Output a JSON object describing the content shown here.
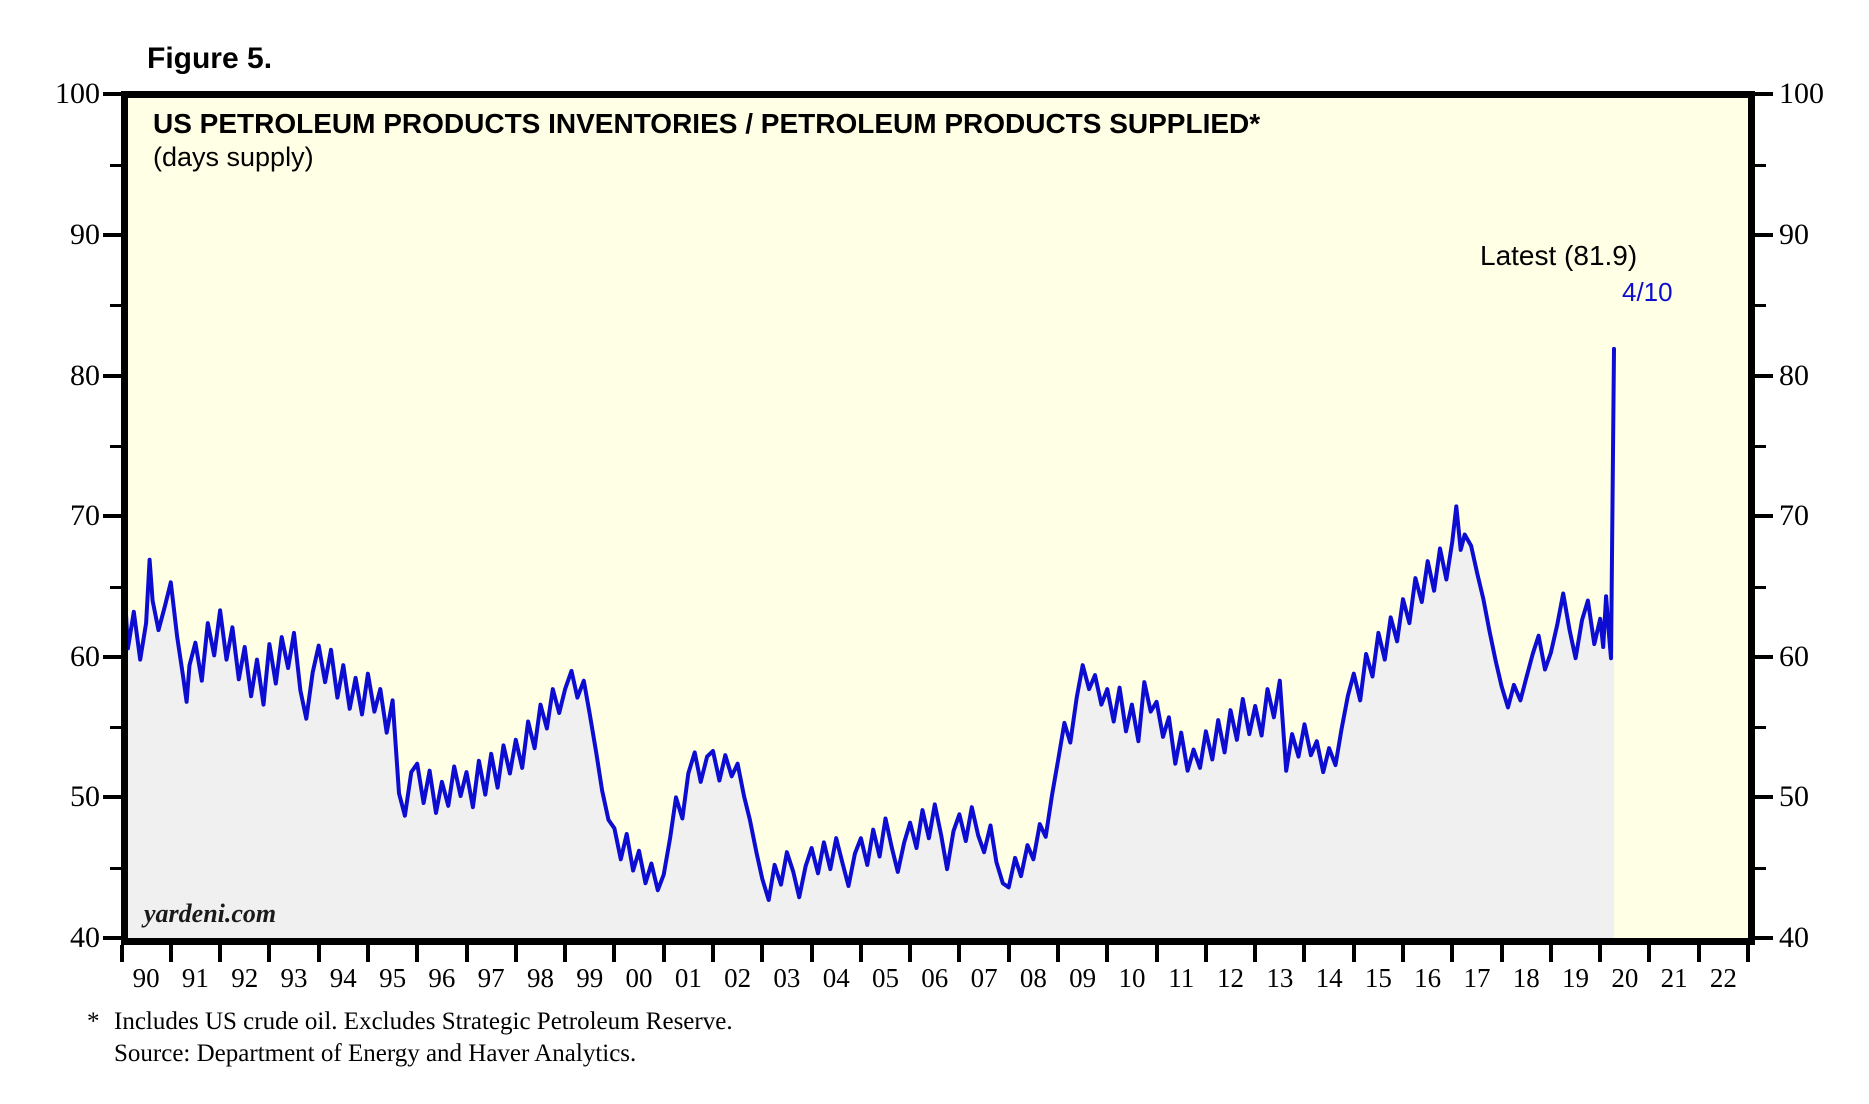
{
  "figure_label": "Figure 5.",
  "chart": {
    "title": "US PETROLEUM PRODUCTS INVENTORIES / PETROLEUM PRODUCTS SUPPLIED*",
    "subtitle": "(days supply)",
    "watermark": "yardeni.com",
    "latest_label": "Latest (81.9)",
    "spike_label": "4/10",
    "colors": {
      "plot_background": "#FFFFE6",
      "area_fill": "#F0F0F0",
      "line": "#0D0DD2",
      "frame": "#000000",
      "text": "#000000"
    }
  },
  "footnote": {
    "marker": "*",
    "line1": "Includes US crude oil. Excludes Strategic Petroleum Reserve.",
    "line2": "Source: Department of Energy and Haver Analytics."
  },
  "chart_data": {
    "type": "line",
    "title": "US PETROLEUM PRODUCTS INVENTORIES / PETROLEUM PRODUCTS SUPPLIED*",
    "subtitle": "(days supply)",
    "ylabel": "days supply",
    "ylim": [
      40,
      100
    ],
    "y_major_ticks": [
      40,
      50,
      60,
      70,
      80,
      90,
      100
    ],
    "y_minor_ticks": [
      45,
      55,
      65,
      75,
      85,
      95
    ],
    "y_labels_both_sides": true,
    "x_start_year": 1990,
    "x_end_year": 2023,
    "x_tick_labels": [
      "90",
      "91",
      "92",
      "93",
      "94",
      "95",
      "96",
      "97",
      "98",
      "99",
      "00",
      "01",
      "02",
      "03",
      "04",
      "05",
      "06",
      "07",
      "08",
      "09",
      "10",
      "11",
      "12",
      "13",
      "14",
      "15",
      "16",
      "17",
      "18",
      "19",
      "20",
      "21",
      "22"
    ],
    "latest_value": 81.9,
    "latest_date_label": "4/10",
    "grid": false,
    "legend": "none",
    "series": [
      {
        "name": "US petroleum products inventories / petroleum products supplied (days supply)",
        "points": [
          [
            1990.05,
            53.8
          ],
          [
            1990.07,
            64.3
          ],
          [
            1990.13,
            60.6
          ],
          [
            1990.25,
            63.2
          ],
          [
            1990.38,
            59.8
          ],
          [
            1990.5,
            62.4
          ],
          [
            1990.57,
            66.9
          ],
          [
            1990.63,
            64.0
          ],
          [
            1990.75,
            61.9
          ],
          [
            1990.88,
            63.6
          ],
          [
            1991.0,
            65.3
          ],
          [
            1991.13,
            61.4
          ],
          [
            1991.25,
            58.6
          ],
          [
            1991.32,
            56.8
          ],
          [
            1991.38,
            59.4
          ],
          [
            1991.5,
            61.0
          ],
          [
            1991.63,
            58.3
          ],
          [
            1991.75,
            62.4
          ],
          [
            1991.88,
            60.1
          ],
          [
            1992.0,
            63.3
          ],
          [
            1992.13,
            59.8
          ],
          [
            1992.25,
            62.1
          ],
          [
            1992.38,
            58.4
          ],
          [
            1992.5,
            60.7
          ],
          [
            1992.63,
            57.2
          ],
          [
            1992.75,
            59.8
          ],
          [
            1992.88,
            56.6
          ],
          [
            1993.0,
            60.9
          ],
          [
            1993.13,
            58.1
          ],
          [
            1993.25,
            61.4
          ],
          [
            1993.38,
            59.2
          ],
          [
            1993.5,
            61.7
          ],
          [
            1993.63,
            57.6
          ],
          [
            1993.75,
            55.6
          ],
          [
            1993.88,
            58.9
          ],
          [
            1994.0,
            60.8
          ],
          [
            1994.13,
            58.2
          ],
          [
            1994.25,
            60.5
          ],
          [
            1994.38,
            57.1
          ],
          [
            1994.5,
            59.4
          ],
          [
            1994.63,
            56.3
          ],
          [
            1994.75,
            58.5
          ],
          [
            1994.88,
            55.9
          ],
          [
            1995.0,
            58.8
          ],
          [
            1995.13,
            56.1
          ],
          [
            1995.25,
            57.7
          ],
          [
            1995.38,
            54.6
          ],
          [
            1995.5,
            56.9
          ],
          [
            1995.63,
            50.3
          ],
          [
            1995.75,
            48.7
          ],
          [
            1995.88,
            51.8
          ],
          [
            1996.0,
            52.4
          ],
          [
            1996.13,
            49.6
          ],
          [
            1996.25,
            51.9
          ],
          [
            1996.38,
            48.9
          ],
          [
            1996.5,
            51.1
          ],
          [
            1996.63,
            49.4
          ],
          [
            1996.75,
            52.2
          ],
          [
            1996.88,
            50.1
          ],
          [
            1997.0,
            51.8
          ],
          [
            1997.13,
            49.3
          ],
          [
            1997.25,
            52.6
          ],
          [
            1997.38,
            50.2
          ],
          [
            1997.5,
            53.1
          ],
          [
            1997.63,
            50.7
          ],
          [
            1997.75,
            53.7
          ],
          [
            1997.88,
            51.7
          ],
          [
            1998.0,
            54.1
          ],
          [
            1998.13,
            52.1
          ],
          [
            1998.25,
            55.4
          ],
          [
            1998.38,
            53.5
          ],
          [
            1998.5,
            56.6
          ],
          [
            1998.63,
            54.9
          ],
          [
            1998.75,
            57.7
          ],
          [
            1998.88,
            56.0
          ],
          [
            1999.0,
            57.7
          ],
          [
            1999.13,
            59.0
          ],
          [
            1999.25,
            57.1
          ],
          [
            1999.38,
            58.3
          ],
          [
            1999.5,
            55.9
          ],
          [
            1999.63,
            53.2
          ],
          [
            1999.75,
            50.5
          ],
          [
            1999.88,
            48.4
          ],
          [
            2000.0,
            47.8
          ],
          [
            2000.13,
            45.6
          ],
          [
            2000.25,
            47.4
          ],
          [
            2000.38,
            44.8
          ],
          [
            2000.5,
            46.2
          ],
          [
            2000.63,
            43.9
          ],
          [
            2000.75,
            45.3
          ],
          [
            2000.88,
            43.4
          ],
          [
            2001.0,
            44.5
          ],
          [
            2001.13,
            47.1
          ],
          [
            2001.25,
            50.0
          ],
          [
            2001.38,
            48.5
          ],
          [
            2001.5,
            51.7
          ],
          [
            2001.63,
            53.2
          ],
          [
            2001.75,
            51.1
          ],
          [
            2001.88,
            52.9
          ],
          [
            2002.0,
            53.3
          ],
          [
            2002.13,
            51.2
          ],
          [
            2002.25,
            53.0
          ],
          [
            2002.38,
            51.5
          ],
          [
            2002.5,
            52.4
          ],
          [
            2002.63,
            50.1
          ],
          [
            2002.75,
            48.4
          ],
          [
            2002.88,
            46.1
          ],
          [
            2003.0,
            44.2
          ],
          [
            2003.13,
            42.7
          ],
          [
            2003.25,
            45.2
          ],
          [
            2003.38,
            43.8
          ],
          [
            2003.5,
            46.1
          ],
          [
            2003.63,
            44.7
          ],
          [
            2003.75,
            42.9
          ],
          [
            2003.88,
            45.1
          ],
          [
            2004.0,
            46.4
          ],
          [
            2004.13,
            44.6
          ],
          [
            2004.25,
            46.8
          ],
          [
            2004.38,
            44.9
          ],
          [
            2004.5,
            47.1
          ],
          [
            2004.63,
            45.3
          ],
          [
            2004.75,
            43.7
          ],
          [
            2004.88,
            46.0
          ],
          [
            2005.0,
            47.1
          ],
          [
            2005.13,
            45.2
          ],
          [
            2005.25,
            47.7
          ],
          [
            2005.38,
            45.8
          ],
          [
            2005.5,
            48.5
          ],
          [
            2005.63,
            46.4
          ],
          [
            2005.75,
            44.7
          ],
          [
            2005.88,
            46.8
          ],
          [
            2006.0,
            48.2
          ],
          [
            2006.13,
            46.4
          ],
          [
            2006.25,
            49.1
          ],
          [
            2006.38,
            47.1
          ],
          [
            2006.5,
            49.5
          ],
          [
            2006.63,
            47.3
          ],
          [
            2006.75,
            44.9
          ],
          [
            2006.88,
            47.6
          ],
          [
            2007.0,
            48.8
          ],
          [
            2007.13,
            46.9
          ],
          [
            2007.25,
            49.3
          ],
          [
            2007.38,
            47.3
          ],
          [
            2007.5,
            46.1
          ],
          [
            2007.63,
            48.0
          ],
          [
            2007.75,
            45.4
          ],
          [
            2007.88,
            43.9
          ],
          [
            2008.0,
            43.6
          ],
          [
            2008.13,
            45.7
          ],
          [
            2008.25,
            44.4
          ],
          [
            2008.38,
            46.6
          ],
          [
            2008.5,
            45.6
          ],
          [
            2008.63,
            48.1
          ],
          [
            2008.75,
            47.2
          ],
          [
            2008.88,
            50.2
          ],
          [
            2009.0,
            52.6
          ],
          [
            2009.13,
            55.3
          ],
          [
            2009.25,
            53.9
          ],
          [
            2009.38,
            57.1
          ],
          [
            2009.5,
            59.4
          ],
          [
            2009.63,
            57.7
          ],
          [
            2009.75,
            58.7
          ],
          [
            2009.88,
            56.6
          ],
          [
            2010.0,
            57.7
          ],
          [
            2010.13,
            55.4
          ],
          [
            2010.25,
            57.8
          ],
          [
            2010.38,
            54.7
          ],
          [
            2010.5,
            56.6
          ],
          [
            2010.63,
            54.0
          ],
          [
            2010.75,
            58.2
          ],
          [
            2010.88,
            56.1
          ],
          [
            2011.0,
            56.8
          ],
          [
            2011.13,
            54.3
          ],
          [
            2011.25,
            55.7
          ],
          [
            2011.38,
            52.4
          ],
          [
            2011.5,
            54.6
          ],
          [
            2011.63,
            51.9
          ],
          [
            2011.75,
            53.4
          ],
          [
            2011.88,
            52.1
          ],
          [
            2012.0,
            54.7
          ],
          [
            2012.13,
            52.7
          ],
          [
            2012.25,
            55.5
          ],
          [
            2012.38,
            53.2
          ],
          [
            2012.5,
            56.2
          ],
          [
            2012.63,
            54.1
          ],
          [
            2012.75,
            57.0
          ],
          [
            2012.88,
            54.5
          ],
          [
            2013.0,
            56.5
          ],
          [
            2013.13,
            54.4
          ],
          [
            2013.25,
            57.7
          ],
          [
            2013.38,
            55.7
          ],
          [
            2013.5,
            58.3
          ],
          [
            2013.63,
            51.9
          ],
          [
            2013.75,
            54.5
          ],
          [
            2013.88,
            52.9
          ],
          [
            2014.0,
            55.2
          ],
          [
            2014.13,
            53.0
          ],
          [
            2014.25,
            54.0
          ],
          [
            2014.38,
            51.8
          ],
          [
            2014.5,
            53.5
          ],
          [
            2014.63,
            52.3
          ],
          [
            2014.75,
            54.8
          ],
          [
            2014.88,
            57.2
          ],
          [
            2015.0,
            58.8
          ],
          [
            2015.13,
            56.9
          ],
          [
            2015.25,
            60.2
          ],
          [
            2015.38,
            58.6
          ],
          [
            2015.5,
            61.7
          ],
          [
            2015.63,
            59.8
          ],
          [
            2015.75,
            62.8
          ],
          [
            2015.88,
            61.1
          ],
          [
            2016.0,
            64.1
          ],
          [
            2016.13,
            62.4
          ],
          [
            2016.25,
            65.6
          ],
          [
            2016.38,
            63.9
          ],
          [
            2016.5,
            66.8
          ],
          [
            2016.63,
            64.7
          ],
          [
            2016.75,
            67.7
          ],
          [
            2016.88,
            65.5
          ],
          [
            2017.0,
            68.2
          ],
          [
            2017.08,
            70.7
          ],
          [
            2017.17,
            67.6
          ],
          [
            2017.25,
            68.7
          ],
          [
            2017.38,
            67.9
          ],
          [
            2017.5,
            66.0
          ],
          [
            2017.63,
            64.1
          ],
          [
            2017.75,
            61.9
          ],
          [
            2017.88,
            59.7
          ],
          [
            2018.0,
            57.9
          ],
          [
            2018.13,
            56.4
          ],
          [
            2018.25,
            58.0
          ],
          [
            2018.38,
            56.9
          ],
          [
            2018.5,
            58.5
          ],
          [
            2018.63,
            60.2
          ],
          [
            2018.75,
            61.5
          ],
          [
            2018.88,
            59.1
          ],
          [
            2019.0,
            60.3
          ],
          [
            2019.13,
            62.3
          ],
          [
            2019.25,
            64.5
          ],
          [
            2019.38,
            61.9
          ],
          [
            2019.5,
            59.9
          ],
          [
            2019.63,
            62.6
          ],
          [
            2019.75,
            64.0
          ],
          [
            2019.88,
            60.9
          ],
          [
            2020.0,
            62.7
          ],
          [
            2020.06,
            60.7
          ],
          [
            2020.12,
            64.3
          ],
          [
            2020.17,
            61.9
          ],
          [
            2020.22,
            59.9
          ],
          [
            2020.28,
            81.9
          ]
        ]
      }
    ]
  }
}
